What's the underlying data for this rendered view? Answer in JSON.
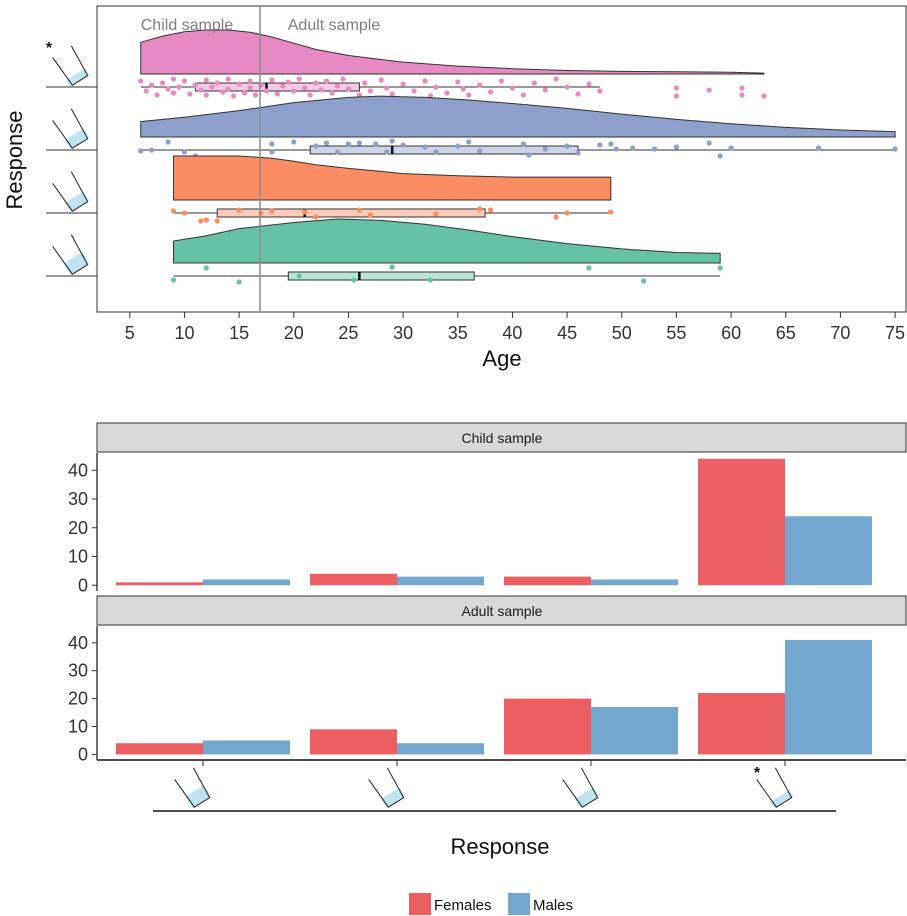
{
  "chart_data": [
    {
      "type": "raincloud",
      "xlabel": "Age",
      "ylabel": "Response",
      "xlim": [
        2,
        76
      ],
      "x_ticks": [
        5,
        10,
        15,
        20,
        25,
        30,
        35,
        40,
        45,
        50,
        55,
        60,
        65,
        70,
        75
      ],
      "divider_age": 17,
      "region_labels": [
        "Child sample",
        "Adult sample"
      ],
      "grid": false,
      "rows": [
        {
          "response": "glass 1 (starred)",
          "star": "*",
          "color": "#E78AC3",
          "fill_level": 0.22,
          "range": [
            6,
            63
          ],
          "density": [
            [
              6,
              0.72
            ],
            [
              8,
              0.86
            ],
            [
              10,
              0.96
            ],
            [
              12,
              1.0
            ],
            [
              14,
              1.0
            ],
            [
              16,
              0.95
            ],
            [
              18,
              0.84
            ],
            [
              20,
              0.7
            ],
            [
              22,
              0.56
            ],
            [
              25,
              0.42
            ],
            [
              30,
              0.27
            ],
            [
              35,
              0.18
            ],
            [
              40,
              0.12
            ],
            [
              45,
              0.08
            ],
            [
              50,
              0.06
            ],
            [
              55,
              0.05
            ],
            [
              60,
              0.04
            ],
            [
              63,
              0.02
            ]
          ],
          "box": {
            "q1": 11,
            "median": 17.5,
            "q3": 26,
            "whisker_low": 6,
            "whisker_high": 48
          },
          "points": [
            [
              6,
              0.2
            ],
            [
              6.5,
              0.7
            ],
            [
              7,
              0.4
            ],
            [
              7.5,
              0.9
            ],
            [
              8,
              0.3
            ],
            [
              8.5,
              0.6
            ],
            [
              9,
              0.1
            ],
            [
              9,
              0.8
            ],
            [
              9.5,
              0.5
            ],
            [
              10,
              0.2
            ],
            [
              10.5,
              0.85
            ],
            [
              11,
              0.4
            ],
            [
              11.5,
              0.65
            ],
            [
              12,
              0.15
            ],
            [
              12,
              0.9
            ],
            [
              12.5,
              0.5
            ],
            [
              13,
              0.3
            ],
            [
              13.5,
              0.75
            ],
            [
              14,
              0.1
            ],
            [
              14,
              0.6
            ],
            [
              14.5,
              0.95
            ],
            [
              15,
              0.35
            ],
            [
              15.5,
              0.8
            ],
            [
              16,
              0.2
            ],
            [
              16,
              0.55
            ],
            [
              16.5,
              0.9
            ],
            [
              17,
              0.4
            ],
            [
              17.5,
              0.7
            ],
            [
              18,
              0.15
            ],
            [
              18.5,
              0.85
            ],
            [
              19,
              0.45
            ],
            [
              19.5,
              0.25
            ],
            [
              20,
              0.7
            ],
            [
              20.5,
              0.1
            ],
            [
              21,
              0.55
            ],
            [
              21.5,
              0.9
            ],
            [
              22,
              0.3
            ],
            [
              22.5,
              0.65
            ],
            [
              23,
              0.2
            ],
            [
              23.5,
              0.8
            ],
            [
              24,
              0.45
            ],
            [
              24.5,
              0.1
            ],
            [
              25,
              0.6
            ],
            [
              26,
              0.9
            ],
            [
              26.5,
              0.3
            ],
            [
              27,
              0.7
            ],
            [
              28,
              0.15
            ],
            [
              28.5,
              0.55
            ],
            [
              29,
              0.85
            ],
            [
              30,
              0.35
            ],
            [
              31,
              0.7
            ],
            [
              32,
              0.2
            ],
            [
              32.5,
              0.95
            ],
            [
              33,
              0.5
            ],
            [
              34,
              0.8
            ],
            [
              35,
              0.25
            ],
            [
              35.5,
              0.6
            ],
            [
              36,
              0.9
            ],
            [
              37,
              0.4
            ],
            [
              38,
              0.75
            ],
            [
              39,
              0.2
            ],
            [
              40,
              0.55
            ],
            [
              41,
              0.9
            ],
            [
              42,
              0.3
            ],
            [
              43,
              0.65
            ],
            [
              44,
              0.1
            ],
            [
              45,
              0.5
            ],
            [
              46,
              0.85
            ],
            [
              47,
              0.35
            ],
            [
              48,
              0.7
            ],
            [
              55,
              0.55
            ],
            [
              55,
              0.95
            ],
            [
              58,
              0.65
            ],
            [
              61,
              0.55
            ],
            [
              61,
              0.9
            ],
            [
              63,
              0.95
            ]
          ]
        },
        {
          "response": "glass 2",
          "color": "#8DA0CB",
          "fill_level": 0.32,
          "range": [
            6,
            75
          ],
          "density": [
            [
              6,
              0.35
            ],
            [
              10,
              0.45
            ],
            [
              15,
              0.6
            ],
            [
              20,
              0.78
            ],
            [
              25,
              0.9
            ],
            [
              28,
              0.93
            ],
            [
              32,
              0.9
            ],
            [
              36,
              0.84
            ],
            [
              40,
              0.76
            ],
            [
              45,
              0.65
            ],
            [
              50,
              0.52
            ],
            [
              55,
              0.4
            ],
            [
              60,
              0.3
            ],
            [
              65,
              0.22
            ],
            [
              70,
              0.16
            ],
            [
              75,
              0.12
            ]
          ],
          "box": {
            "q1": 21.5,
            "median": 29,
            "q3": 46,
            "whisker_low": 6,
            "whisker_high": 75
          },
          "points": [
            [
              6,
              0.55
            ],
            [
              7,
              0.5
            ],
            [
              8.5,
              0.1
            ],
            [
              10,
              0.6
            ],
            [
              11,
              0.8
            ],
            [
              18,
              0.2
            ],
            [
              18,
              0.6
            ],
            [
              20,
              0.1
            ],
            [
              22,
              0.3
            ],
            [
              23,
              0.15
            ],
            [
              24,
              0.6
            ],
            [
              25,
              0.2
            ],
            [
              26,
              0.15
            ],
            [
              27.5,
              0.2
            ],
            [
              28.5,
              0.6
            ],
            [
              29,
              0.05
            ],
            [
              30,
              0.25
            ],
            [
              32,
              0.35
            ],
            [
              33,
              0.6
            ],
            [
              35,
              0.3
            ],
            [
              36,
              0.1
            ],
            [
              37,
              0.55
            ],
            [
              41,
              0.2
            ],
            [
              41.5,
              0.75
            ],
            [
              43,
              0.45
            ],
            [
              45,
              0.3
            ],
            [
              46,
              0.65
            ],
            [
              48,
              0.25
            ],
            [
              49,
              0.2
            ],
            [
              49.5,
              0.45
            ],
            [
              51,
              0.4
            ],
            [
              53,
              0.45
            ],
            [
              55,
              0.35
            ],
            [
              58,
              0.15
            ],
            [
              60,
              0.4
            ],
            [
              59,
              0.8
            ],
            [
              68,
              0.4
            ],
            [
              75,
              0.45
            ]
          ]
        },
        {
          "response": "glass 3",
          "color": "#FC8D62",
          "fill_level": 0.32,
          "range": [
            9,
            49
          ],
          "density": [
            [
              9,
              1.0
            ],
            [
              12,
              1.0
            ],
            [
              15,
              1.0
            ],
            [
              18,
              0.95
            ],
            [
              20,
              0.88
            ],
            [
              22,
              0.8
            ],
            [
              25,
              0.72
            ],
            [
              28,
              0.65
            ],
            [
              30,
              0.6
            ],
            [
              35,
              0.55
            ],
            [
              40,
              0.52
            ],
            [
              45,
              0.52
            ],
            [
              49,
              0.52
            ]
          ],
          "box": {
            "q1": 13,
            "median": 21,
            "q3": 37.5,
            "whisker_low": 9,
            "whisker_high": 49
          },
          "points": [
            [
              9,
              0.4
            ],
            [
              10,
              0.5
            ],
            [
              11.5,
              0.9
            ],
            [
              12,
              0.85
            ],
            [
              13,
              0.9
            ],
            [
              15,
              0.35
            ],
            [
              17,
              0.5
            ],
            [
              18,
              0.4
            ],
            [
              21,
              0.45
            ],
            [
              22,
              0.7
            ],
            [
              26,
              0.35
            ],
            [
              27,
              0.6
            ],
            [
              33,
              0.55
            ],
            [
              37,
              0.3
            ],
            [
              38,
              0.35
            ],
            [
              44,
              0.7
            ],
            [
              45,
              0.5
            ],
            [
              49,
              0.45
            ]
          ]
        },
        {
          "response": "glass 4",
          "color": "#66C2A5",
          "fill_level": 0.4,
          "range": [
            9,
            59
          ],
          "density": [
            [
              9,
              0.5
            ],
            [
              12,
              0.62
            ],
            [
              15,
              0.78
            ],
            [
              20,
              0.92
            ],
            [
              24,
              1.0
            ],
            [
              28,
              0.97
            ],
            [
              32,
              0.88
            ],
            [
              36,
              0.75
            ],
            [
              40,
              0.6
            ],
            [
              45,
              0.44
            ],
            [
              50,
              0.32
            ],
            [
              55,
              0.24
            ],
            [
              59,
              0.22
            ]
          ],
          "box": {
            "q1": 19.5,
            "median": 26,
            "q3": 36.5,
            "whisker_low": 9,
            "whisker_high": 59
          },
          "points": [
            [
              9,
              0.7
            ],
            [
              12,
              0.1
            ],
            [
              15,
              0.8
            ],
            [
              20.5,
              0.5
            ],
            [
              25.5,
              0.7
            ],
            [
              29,
              0.05
            ],
            [
              32.5,
              0.7
            ],
            [
              47,
              0.1
            ],
            [
              52,
              0.75
            ],
            [
              59,
              0.1
            ]
          ]
        }
      ]
    },
    {
      "type": "bar",
      "panels": [
        {
          "title": "Child sample",
          "ylim": [
            -2,
            46
          ],
          "yticks": [
            0,
            10,
            20,
            30,
            40
          ],
          "series": [
            {
              "name": "Females",
              "color": "#EB5F63",
              "values": [
                1,
                4,
                3,
                44
              ]
            },
            {
              "name": "Males",
              "color": "#74A7CF",
              "values": [
                2,
                3,
                2,
                24
              ]
            }
          ]
        },
        {
          "title": "Adult sample",
          "ylim": [
            -2,
            46
          ],
          "yticks": [
            0,
            10,
            20,
            30,
            40
          ],
          "series": [
            {
              "name": "Females",
              "color": "#EB5F63",
              "values": [
                4,
                9,
                20,
                22
              ]
            },
            {
              "name": "Males",
              "color": "#74A7CF",
              "values": [
                5,
                4,
                17,
                41
              ]
            }
          ]
        }
      ],
      "categories": [
        {
          "response": "glass 4",
          "fill_level": 0.4,
          "star": ""
        },
        {
          "response": "glass 3",
          "fill_level": 0.32,
          "star": ""
        },
        {
          "response": "glass 2",
          "fill_level": 0.32,
          "star": ""
        },
        {
          "response": "glass 1",
          "fill_level": 0.22,
          "star": "*"
        }
      ],
      "xlabel": "Response",
      "legend": {
        "placement": "bottom",
        "entries": [
          "Females",
          "Males"
        ]
      }
    }
  ],
  "colors": {
    "strip_bg": "#D9D9D9",
    "water": "#BFE3F0",
    "divider": "#8C8C8C",
    "axis": "#333333"
  }
}
